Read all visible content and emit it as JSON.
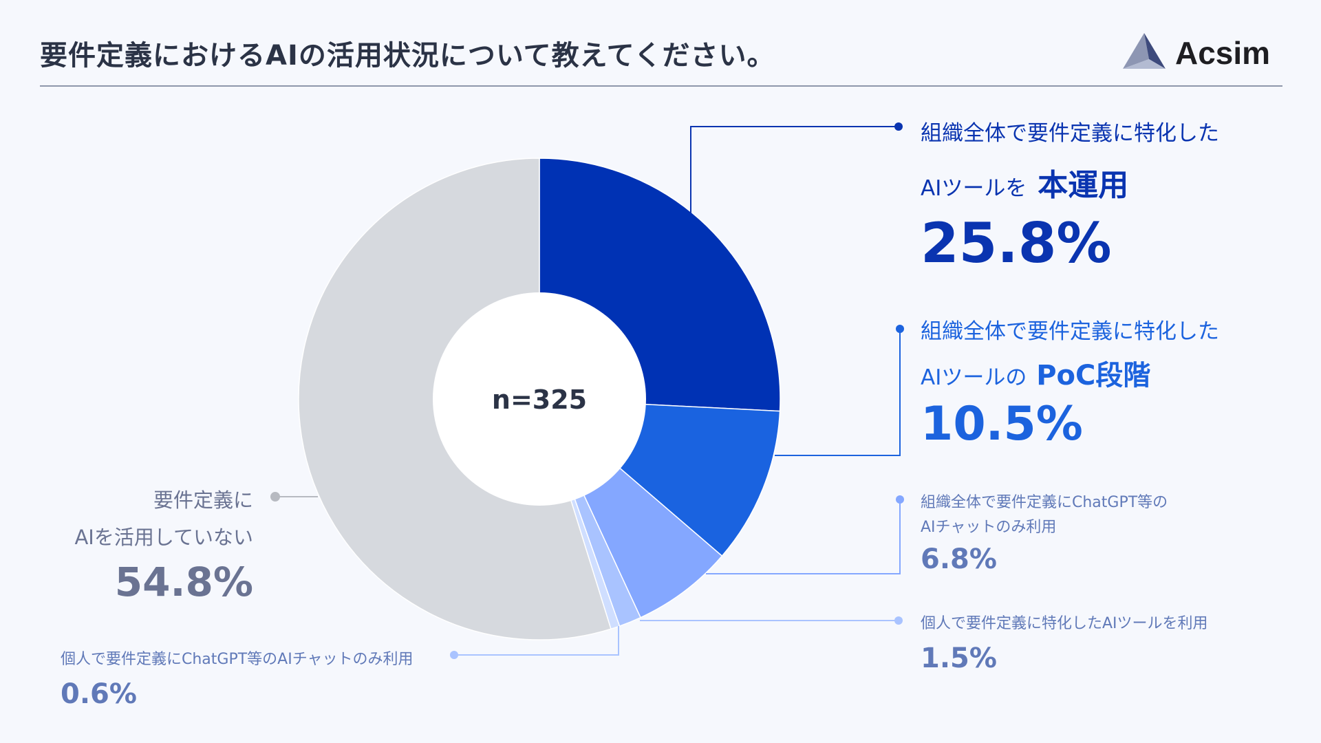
{
  "header": {
    "title": "要件定義におけるAIの活用状況について教えてください。",
    "brand": "Acsim"
  },
  "chart_data": {
    "type": "pie",
    "center_label": "n=325",
    "slices": [
      {
        "line1": "組織全体で要件定義に特化した",
        "line2_prefix": "AIツールを",
        "line2_emphasis": "本運用",
        "value": 25.8,
        "value_label": "25.8%",
        "color": "#0032b4"
      },
      {
        "line1": "組織全体で要件定義に特化した",
        "line2_prefix": "AIツールの",
        "line2_emphasis": "PoC段階",
        "value": 10.5,
        "value_label": "10.5%",
        "color": "#1a63e0"
      },
      {
        "line1": "組織全体で要件定義にChatGPT等の",
        "line2_prefix": "AIチャットのみ利用",
        "line2_emphasis": "",
        "value": 6.8,
        "value_label": "6.8%",
        "color": "#84a7ff"
      },
      {
        "line1": "個人で要件定義に特化したAIツールを利用",
        "line2_prefix": "",
        "line2_emphasis": "",
        "value": 1.5,
        "value_label": "1.5%",
        "color": "#a9c3ff"
      },
      {
        "line1": "個人で要件定義にChatGPT等のAIチャットのみ利用",
        "line2_prefix": "",
        "line2_emphasis": "",
        "value": 0.6,
        "value_label": "0.6%",
        "color": "#cfdeff"
      },
      {
        "line1": "要件定義に",
        "line2_prefix": "AIを活用していない",
        "line2_emphasis": "",
        "value": 54.8,
        "value_label": "54.8%",
        "color": "#d6d9de"
      }
    ]
  }
}
